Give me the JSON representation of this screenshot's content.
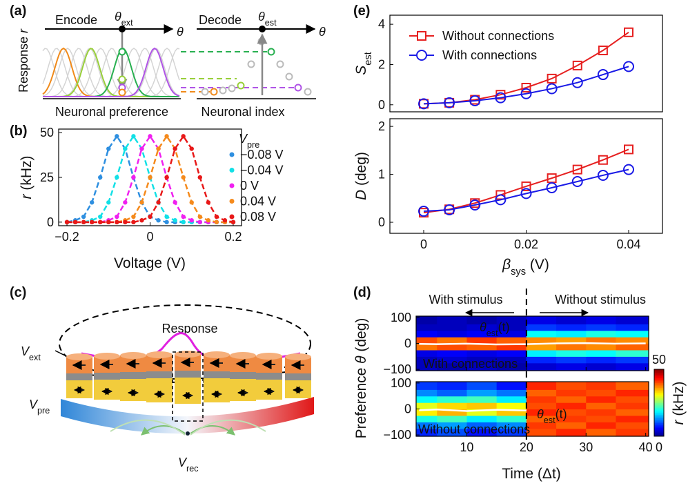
{
  "panel_labels": [
    "(a)",
    "(b)",
    "(c)",
    "(d)",
    "(e)"
  ],
  "diagram_a": {
    "encode": "Encode",
    "theta_ext": {
      "main": "θ",
      "sub": "ext"
    },
    "theta_axis_1": "θ",
    "decode": "Decode",
    "theta_est": {
      "main": "θ",
      "sub": "est"
    },
    "theta_axis_2": "θ",
    "ylabel": {
      "text": "Response ",
      "main": "r"
    },
    "xlabel_left": "Neuronal preference",
    "xlabel_right": "Neuronal index"
  },
  "diagram_c": {
    "response": "Response",
    "v_ext": {
      "main": "V",
      "sub": "ext"
    },
    "v_pre": {
      "main": "V",
      "sub": "pre"
    },
    "v_rec": {
      "main": "V",
      "sub": "rec"
    }
  },
  "chart_data": [
    {
      "type": "scatter",
      "x": [
        -0.2,
        -0.18,
        -0.16,
        -0.14,
        -0.12,
        -0.1,
        -0.08,
        -0.06,
        -0.04,
        -0.02,
        0,
        0.02,
        0.04,
        0.06,
        0.08,
        0.1,
        0.12,
        0.14,
        0.16,
        0.18,
        0.2
      ],
      "series": [
        {
          "name": "−0.08 V",
          "color": "#2e8fe0",
          "values": [
            0,
            1,
            3,
            11,
            25,
            41,
            48,
            41,
            25,
            11,
            3,
            1,
            0,
            0,
            0,
            0,
            0,
            0,
            0,
            0,
            0
          ]
        },
        {
          "name": "−0.04 V",
          "color": "#12e0e6",
          "values": [
            0,
            0,
            0,
            1,
            3,
            11,
            25,
            41,
            48,
            41,
            25,
            11,
            3,
            1,
            0,
            0,
            0,
            0,
            0,
            0,
            0
          ]
        },
        {
          "name": "0 V",
          "color": "#f020f0",
          "values": [
            0,
            0,
            0,
            0,
            0,
            1,
            3,
            11,
            25,
            41,
            48,
            41,
            25,
            11,
            3,
            1,
            0,
            0,
            0,
            0,
            0
          ]
        },
        {
          "name": "0.04 V",
          "color": "#f58a1c",
          "values": [
            0,
            0,
            0,
            0,
            0,
            0,
            0,
            1,
            3,
            11,
            25,
            41,
            48,
            41,
            25,
            11,
            3,
            1,
            0,
            0,
            0
          ]
        },
        {
          "name": "0.08 V",
          "color": "#e81818",
          "values": [
            0,
            0,
            0,
            0,
            0,
            0,
            0,
            0,
            0,
            1,
            3,
            11,
            25,
            41,
            48,
            41,
            25,
            11,
            3,
            1,
            0
          ]
        }
      ],
      "line_style": "dashed",
      "xlim": [
        -0.22,
        0.22
      ],
      "xticks": [
        {
          "value": -0.2,
          "label": "−0.2"
        },
        0,
        0.2
      ],
      "ylim": [
        -2,
        52
      ],
      "yticks": [
        0,
        25,
        50
      ],
      "xlabel": "Voltage (V)",
      "ylabel": {
        "main": "r",
        "unit": " (kHz)"
      },
      "legend_title": {
        "main": "V",
        "sub": "pre"
      }
    },
    {
      "type": "line",
      "x": [
        0,
        0.005,
        0.01,
        0.015,
        0.02,
        0.025,
        0.03,
        0.035,
        0.04
      ],
      "series": [
        {
          "name": "Without connections",
          "color": "#e62020",
          "marker": "square",
          "values": [
            0.05,
            0.1,
            0.25,
            0.5,
            0.85,
            1.3,
            1.95,
            2.7,
            3.6
          ]
        },
        {
          "name": "With connections",
          "color": "#1a1ae6",
          "marker": "circle",
          "values": [
            0.05,
            0.1,
            0.2,
            0.35,
            0.55,
            0.8,
            1.1,
            1.5,
            1.9
          ]
        }
      ],
      "xlim": [
        -0.0066,
        0.0466
      ],
      "ylim": [
        -0.35,
        4.45
      ],
      "yticks": [
        0,
        2,
        4
      ],
      "ylabel": {
        "main": "S",
        "sub": "est"
      },
      "legend": "upper left"
    },
    {
      "type": "line",
      "x": [
        0,
        0.005,
        0.01,
        0.015,
        0.02,
        0.025,
        0.03,
        0.035,
        0.04
      ],
      "series": [
        {
          "color": "#e62020",
          "marker": "square",
          "values": [
            0.2,
            0.27,
            0.4,
            0.57,
            0.75,
            0.92,
            1.1,
            1.3,
            1.52
          ]
        },
        {
          "color": "#1a1ae6",
          "marker": "circle",
          "values": [
            0.23,
            0.26,
            0.36,
            0.47,
            0.6,
            0.72,
            0.85,
            0.98,
            1.1
          ]
        }
      ],
      "xlim": [
        -0.0066,
        0.0466
      ],
      "xticks": [
        0,
        0.02,
        0.04
      ],
      "ylim": [
        -0.23,
        2.16
      ],
      "yticks": [
        0,
        1,
        2
      ],
      "xlabel": {
        "main": "β",
        "sub": "sys",
        "unit": " (V)"
      },
      "ylabel": {
        "main": "D",
        "unit": " (deg)"
      }
    },
    {
      "type": "heatmap",
      "xlim": [
        1.5,
        40.5
      ],
      "xticks": [
        10,
        20,
        30,
        40
      ],
      "x_bins": [
        1.5,
        5,
        10,
        15,
        20,
        25,
        30,
        35,
        40.5
      ],
      "y_bins": [
        -105,
        -75,
        -50,
        -25,
        0,
        25,
        50,
        75,
        105
      ],
      "xlabel": "Time (Δt)",
      "ylabel": {
        "text": "Preference ",
        "main": "θ",
        "unit": " (deg)"
      },
      "stimulus_off": 20,
      "stimulus_labels": [
        "With stimulus",
        "Without stimulus"
      ],
      "colorbar": {
        "lim": [
          0,
          50
        ],
        "ticks": [
          0,
          50
        ],
        "label": {
          "main": "r",
          "unit": " (kHz)"
        }
      },
      "panels": [
        {
          "label": "With connections",
          "ylim": [
            -105,
            105
          ],
          "yticks": [
            {
              "value": -100,
              "label": "−100"
            },
            0,
            100
          ],
          "values": [
            [
              3,
              2,
              3,
              2,
              4,
              5,
              4,
              5
            ],
            [
              3,
              4,
              3,
              3,
              8,
              9,
              8,
              9
            ],
            [
              5,
              6,
              5,
              6,
              18,
              20,
              19,
              21
            ],
            [
              38,
              40,
              39,
              41,
              36,
              38,
              37,
              39
            ],
            [
              40,
              38,
              41,
              39,
              37,
              36,
              38,
              37
            ],
            [
              6,
              5,
              6,
              5,
              19,
              18,
              20,
              19
            ],
            [
              3,
              3,
              4,
              3,
              9,
              8,
              9,
              8
            ],
            [
              2,
              3,
              2,
              3,
              5,
              4,
              5,
              4
            ]
          ],
          "estimate": {
            "x": [
              2,
              5,
              10,
              15,
              20,
              25,
              30,
              35,
              40
            ],
            "values": [
              -2,
              -3,
              -1,
              -4,
              -3,
              0,
              1,
              -1,
              0
            ]
          },
          "estimate_label": {
            "main": "θ",
            "sub": "est",
            "unit": "(t)"
          }
        },
        {
          "label": "Without connections",
          "ylim": [
            -105,
            105
          ],
          "yticks": [
            {
              "value": -100,
              "label": "−100"
            },
            0,
            100
          ],
          "values": [
            [
              8,
              10,
              7,
              9,
              40,
              42,
              39,
              41
            ],
            [
              12,
              14,
              11,
              13,
              41,
              39,
              42,
              40
            ],
            [
              20,
              22,
              18,
              21,
              39,
              41,
              40,
              42
            ],
            [
              32,
              35,
              30,
              34,
              42,
              40,
              41,
              39
            ],
            [
              30,
              33,
              34,
              31,
              40,
              42,
              39,
              41
            ],
            [
              19,
              21,
              22,
              18,
              41,
              39,
              42,
              40
            ],
            [
              13,
              11,
              14,
              12,
              39,
              41,
              40,
              42
            ],
            [
              9,
              8,
              10,
              7,
              42,
              40,
              41,
              39
            ]
          ],
          "estimate": {
            "x": [
              2,
              5,
              10,
              15,
              20
            ],
            "values": [
              -5,
              -2,
              -8,
              -3,
              -6
            ]
          },
          "estimate_label": {
            "main": "θ",
            "sub": "est",
            "unit": "(t)"
          }
        }
      ]
    }
  ]
}
